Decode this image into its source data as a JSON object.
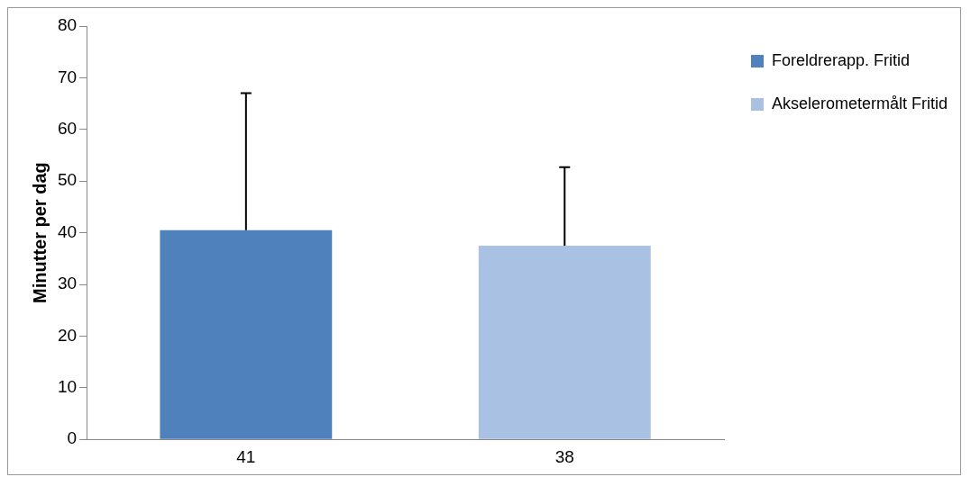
{
  "chart_data": {
    "type": "bar",
    "ylabel": "Minutter per dag",
    "categories": [
      "41",
      "38"
    ],
    "series": [
      {
        "name": "Foreldrerapp. Fritid",
        "color": "#4f81bd",
        "values": [
          40.5,
          null
        ],
        "errors": [
          [
            40.5,
            67
          ],
          null
        ]
      },
      {
        "name": "Akselerometermålt Fritid",
        "color": "#a9c1e2",
        "values": [
          null,
          37.5
        ],
        "errors": [
          null,
          [
            37.5,
            52.7
          ]
        ]
      }
    ],
    "ylim": [
      0,
      80
    ],
    "yticks": [
      0,
      10,
      20,
      30,
      40,
      50,
      60,
      70,
      80
    ],
    "grid": false,
    "legend": "top right"
  }
}
